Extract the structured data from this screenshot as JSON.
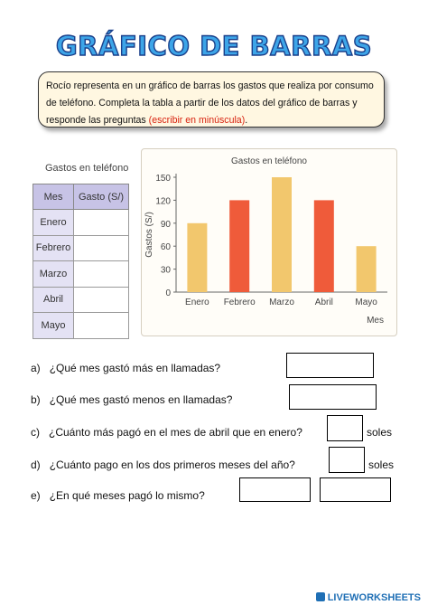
{
  "title": "GRÁFICO DE BARRAS",
  "instructions": {
    "text": "Rocío representa en un gráfico de barras los gastos que realiza por consumo de teléfono. Completa la tabla a partir de los datos del gráfico de barras y responde las preguntas ",
    "highlight": "(escribir en minúscula)",
    "end": "."
  },
  "table": {
    "title": "Gastos en teléfono",
    "headers": [
      "Mes",
      "Gasto (S/)"
    ],
    "months": [
      "Enero",
      "Febrero",
      "Marzo",
      "Abril",
      "Mayo"
    ]
  },
  "chart_data": {
    "type": "bar",
    "title": "Gastos en teléfono",
    "ylabel": "Gastos (S/)",
    "xlabel": "Mes",
    "categories": [
      "Enero",
      "Febrero",
      "Marzo",
      "Abril",
      "Mayo"
    ],
    "values": [
      90,
      120,
      150,
      120,
      60
    ],
    "colors": [
      "#f2c76d",
      "#ef5b3a",
      "#f2c76d",
      "#ef5b3a",
      "#f2c76d"
    ],
    "yticks": [
      0,
      30,
      60,
      90,
      120,
      150
    ],
    "ylim": [
      0,
      150
    ],
    "grid": false
  },
  "questions": [
    {
      "letter": "a)",
      "text": "¿Qué mes gastó más en llamadas?"
    },
    {
      "letter": "b)",
      "text": "¿Qué mes gastó menos en llamadas?"
    },
    {
      "letter": "c)",
      "text": "¿Cuánto más pagó en el mes de abril que en enero?",
      "unit": "soles"
    },
    {
      "letter": "d)",
      "text": "¿Cuánto pago en los dos primeros meses del año?",
      "unit": "soles"
    },
    {
      "letter": "e)",
      "text": "¿En qué meses pagó lo mismo?"
    }
  ],
  "footer": "LIVEWORKSHEETS"
}
